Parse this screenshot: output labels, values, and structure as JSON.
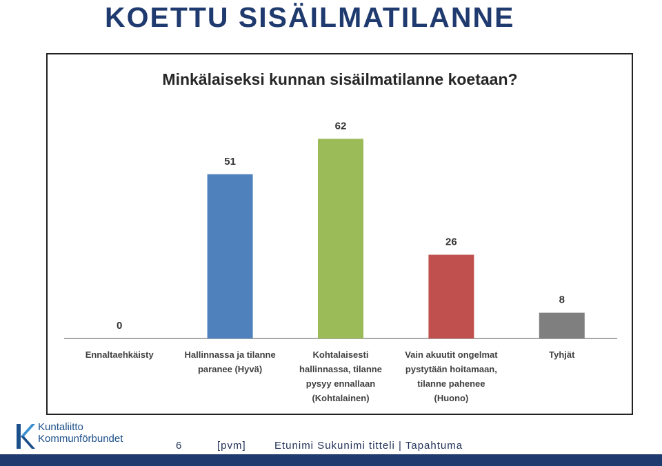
{
  "slide": {
    "title": "KOETTU SISÄILMATILANNE",
    "accent_color": "#1f3a6e"
  },
  "chart_data": {
    "type": "bar",
    "title": "Minkälaiseksi kunnan sisäilmatilanne koetaan?",
    "categories": [
      "Ennaltaehkäisty",
      "Hallinnassa ja tilanne paranee (Hyvä)",
      "Kohtalaisesti hallinnassa, tilanne pysyy ennallaan (Kohtalainen)",
      "Vain akuutit ongelmat pystytään hoitamaan, tilanne pahenee (Huono)",
      "Tyhjät"
    ],
    "category_lines": [
      [
        "Ennaltaehkäisty"
      ],
      [
        "Hallinnassa ja tilanne",
        "paranee (Hyvä)"
      ],
      [
        "Kohtalaisesti",
        "hallinnassa, tilanne",
        "pysyy ennallaan",
        "(Kohtalainen)"
      ],
      [
        "Vain akuutit ongelmat",
        "pystytään hoitamaan,",
        "tilanne pahenee",
        "(Huono)"
      ],
      [
        "Tyhjät"
      ]
    ],
    "values": [
      0,
      51,
      62,
      26,
      8
    ],
    "colors": [
      "#4f81bd",
      "#4f81bd",
      "#9bbb59",
      "#c0504d",
      "#7f7f7f"
    ],
    "ylim": [
      0,
      70
    ],
    "grid": false,
    "legend": "none"
  },
  "footer": {
    "logo_line1": "Kuntaliitto",
    "logo_line2": "Kommunförbundet",
    "page_number": "6",
    "date": "[pvm]",
    "author_event": "Etunimi Sukunimi titteli | Tapahtuma",
    "bar_color": "#1f3a6e"
  }
}
